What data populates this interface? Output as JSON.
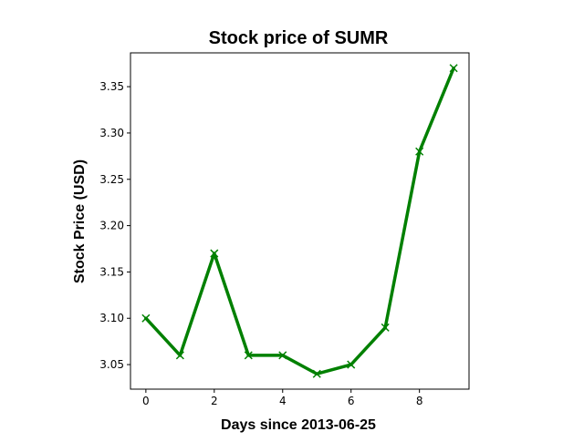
{
  "chart_data": {
    "type": "line",
    "title": "Stock price of SUMR",
    "xlabel": "Days since 2013-06-25",
    "ylabel": "Stock Price (USD)",
    "x": [
      0,
      1,
      2,
      3,
      4,
      5,
      6,
      7,
      8,
      9
    ],
    "series": [
      {
        "values": [
          3.1,
          3.06,
          3.17,
          3.06,
          3.06,
          3.04,
          3.05,
          3.09,
          3.28,
          3.37
        ],
        "color": "#008000",
        "marker": "x"
      }
    ],
    "xticks": [
      "0",
      "2",
      "4",
      "6",
      "8"
    ],
    "yticks": [
      "3.05",
      "3.10",
      "3.15",
      "3.20",
      "3.25",
      "3.30",
      "3.35"
    ],
    "xlim": [
      -0.45,
      9.45
    ],
    "ylim": [
      3.0235,
      3.3865
    ],
    "grid": false,
    "legend": false
  }
}
